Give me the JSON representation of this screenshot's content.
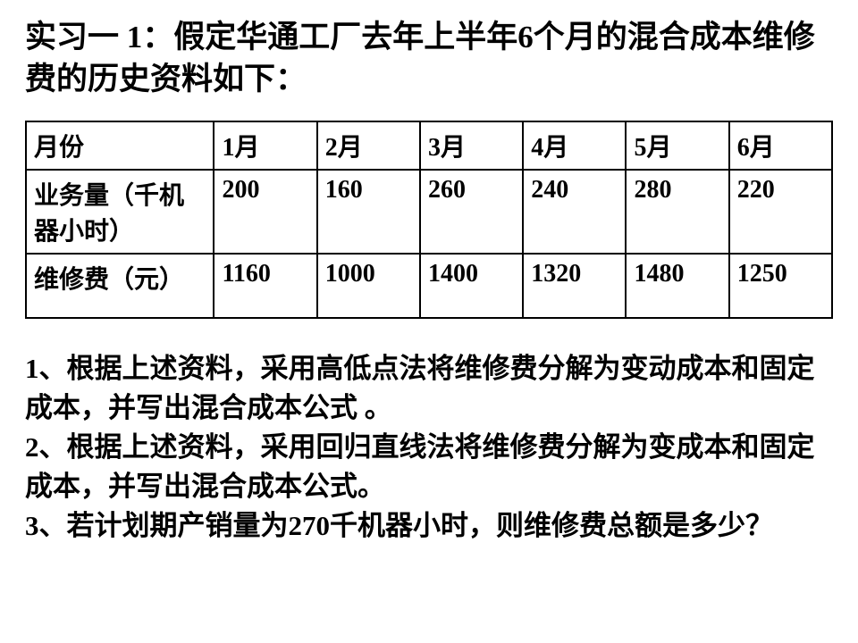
{
  "title": {
    "lead": "实习一",
    "lead_num": " 1",
    "rest": "：假定华通工厂去年上半年6个月的混合成本维修费的历史资料如下："
  },
  "table": {
    "columns": [
      "月份",
      "1月",
      "2月",
      "3月",
      "4月",
      "5月",
      "6月"
    ],
    "rows": [
      {
        "label": "业务量（千机器小时）",
        "values": [
          "200",
          "160",
          "260",
          "240",
          "280",
          "220"
        ]
      },
      {
        "label": "维修费（元）",
        "values": [
          "1160",
          "1000",
          "1400",
          "1320",
          "1480",
          "1250"
        ]
      }
    ],
    "border_color": "#000000",
    "font_size": 28,
    "label_col_width": 210,
    "data_col_width": 115
  },
  "questions": {
    "q1": "1、根据上述资料，采用高低点法将维修费分解为变动成本和固定成本，并写出混合成本公式 。",
    "q2": "2、根据上述资料，采用回归直线法将维修费分解为变成本和固定成本，并写出混合成本公式。",
    "q3": "3、若计划期产销量为270千机器小时，则维修费总额是多少？"
  },
  "colors": {
    "background": "#ffffff",
    "text": "#000000",
    "border": "#000000"
  },
  "typography": {
    "title_size": 35,
    "table_size": 28,
    "question_size": 31,
    "weight": "bold",
    "cn_font": "SimSun",
    "num_font": "Times New Roman"
  }
}
